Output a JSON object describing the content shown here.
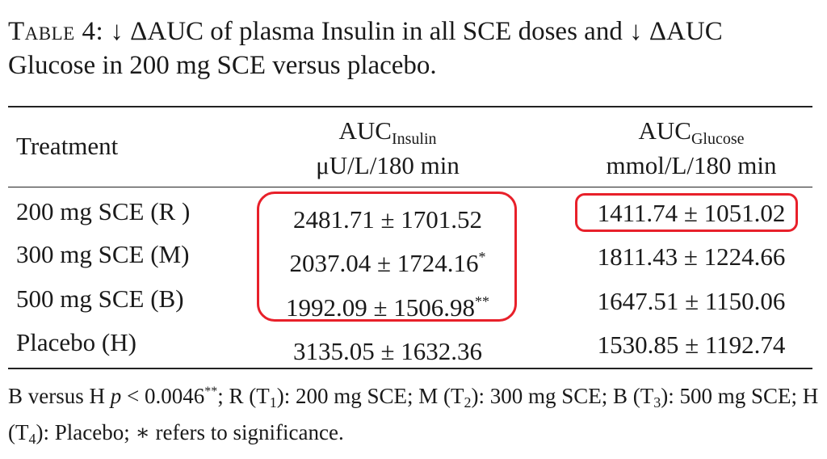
{
  "caption": {
    "label": "Table 4:",
    "text": "↓ ΔAUC of plasma Insulin in all SCE doses and ↓ ΔAUC Glucose in 200 mg SCE versus placebo."
  },
  "header": {
    "treatment": "Treatment",
    "insulin_main": "AUC",
    "insulin_sub": "Insulin",
    "insulin_unit": "μU/L/180 min",
    "glucose_main": "AUC",
    "glucose_sub": "Glucose",
    "glucose_unit": "mmol/L/180 min"
  },
  "rows": [
    {
      "treatment": "200 mg SCE (R )",
      "insulin": "2481.71 ± 1701.52",
      "insulin_mark": "",
      "glucose": "1411.74 ± 1051.02"
    },
    {
      "treatment": "300 mg SCE (M)",
      "insulin": "2037.04 ± 1724.16",
      "insulin_mark": "*",
      "glucose": "1811.43 ± 1224.66"
    },
    {
      "treatment": "500 mg SCE (B)",
      "insulin": "1992.09 ± 1506.98",
      "insulin_mark": "**",
      "glucose": "1647.51 ± 1150.06"
    },
    {
      "treatment": "Placebo (H)",
      "insulin": "3135.05 ± 1632.36",
      "insulin_mark": "",
      "glucose": "1530.85 ± 1192.74"
    }
  ],
  "footnote": {
    "p1": "B versus H  ",
    "p_sym": "p",
    "p2": " < 0.0046",
    "p2_sup": "**",
    "p3": "; R (T",
    "t1": "1",
    "p4": "): 200 mg SCE; M (T",
    "t2": "2",
    "p5": "): 300 mg SCE; B (T",
    "t3": "3",
    "p6": "): 500 mg SCE; H (T",
    "t4": "4",
    "p7": "): Placebo; ∗ refers to significance."
  },
  "highlight_color": "#e8202a"
}
